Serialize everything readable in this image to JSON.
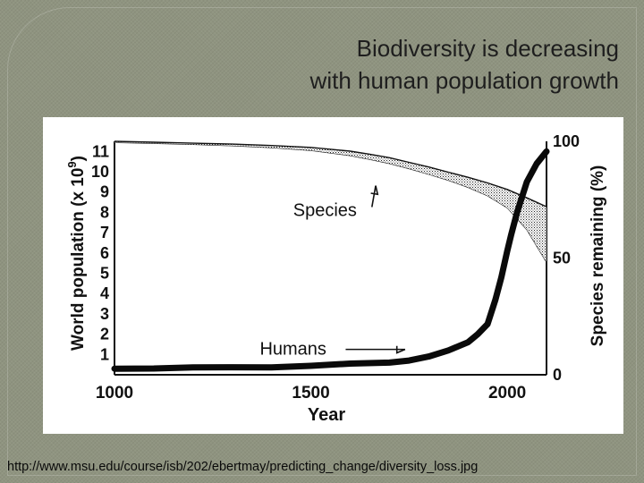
{
  "slide": {
    "title_line1": "Biodiversity is decreasing",
    "title_line2": "with human population growth",
    "source": "http://www.msu.edu/course/isb/202/ebertmay/predicting_change/diversity_loss.jpg"
  },
  "colors": {
    "slide_background": "#8f9480",
    "chart_background": "#ffffff",
    "ink": "#111111"
  },
  "chart_data": {
    "type": "line",
    "xlabel": "Year",
    "ylabel": "World population (x 10",
    "ylabel_exponent": "9",
    "ylabel_close": ")",
    "y2label": "Species remaining (%)",
    "xlim": [
      1000,
      2100
    ],
    "ylim": [
      0,
      11.5
    ],
    "y2lim": [
      0,
      100
    ],
    "x_ticks": [
      "1000",
      "1500",
      "2000"
    ],
    "x_tick_values": [
      1000,
      1500,
      2000
    ],
    "y_ticks": [
      "1",
      "2",
      "3",
      "4",
      "5",
      "6",
      "7",
      "8",
      "9",
      "10",
      "11"
    ],
    "y_tick_values": [
      1,
      2,
      3,
      4,
      5,
      6,
      7,
      8,
      9,
      10,
      11
    ],
    "y2_ticks": [
      "0",
      "50",
      "100"
    ],
    "y2_tick_values": [
      0,
      50,
      100
    ],
    "grid": false,
    "series": [
      {
        "name": "Humans",
        "axis": "left",
        "x": [
          1000,
          1100,
          1200,
          1300,
          1400,
          1500,
          1600,
          1700,
          1750,
          1800,
          1850,
          1900,
          1925,
          1950,
          1970,
          1985,
          2000,
          2010,
          2025,
          2050,
          2075,
          2100
        ],
        "y": [
          0.3,
          0.31,
          0.36,
          0.37,
          0.36,
          0.44,
          0.55,
          0.6,
          0.7,
          0.9,
          1.2,
          1.6,
          2.0,
          2.5,
          3.7,
          4.8,
          6.1,
          6.9,
          8.0,
          9.5,
          10.4,
          11.0
        ]
      },
      {
        "name": "Species",
        "axis": "right",
        "x": [
          1000,
          1100,
          1200,
          1300,
          1400,
          1500,
          1600,
          1650,
          1700,
          1750,
          1800,
          1850,
          1900,
          1950,
          2000,
          2050,
          2100
        ],
        "y_upper": [
          100,
          99.6,
          99.2,
          98.8,
          98.2,
          97.4,
          95.8,
          94.5,
          93.0,
          91.0,
          89.0,
          86.8,
          84.6,
          82.2,
          79.4,
          75.8,
          72.0
        ],
        "y_lower": [
          99.4,
          99.0,
          98.6,
          98.0,
          97.2,
          96.0,
          93.8,
          92.2,
          90.4,
          88.2,
          85.8,
          83.2,
          80.2,
          76.6,
          71.4,
          62.0,
          48.0
        ]
      }
    ],
    "annotations": [
      {
        "text": "Species",
        "x": 1455,
        "y2": 68,
        "arrow_to": {
          "x": 1665,
          "y2": 81
        }
      },
      {
        "text": "Humans",
        "x": 1370,
        "y": 1.25,
        "arrow_to": {
          "x": 1740,
          "y": 1.25
        }
      }
    ]
  }
}
